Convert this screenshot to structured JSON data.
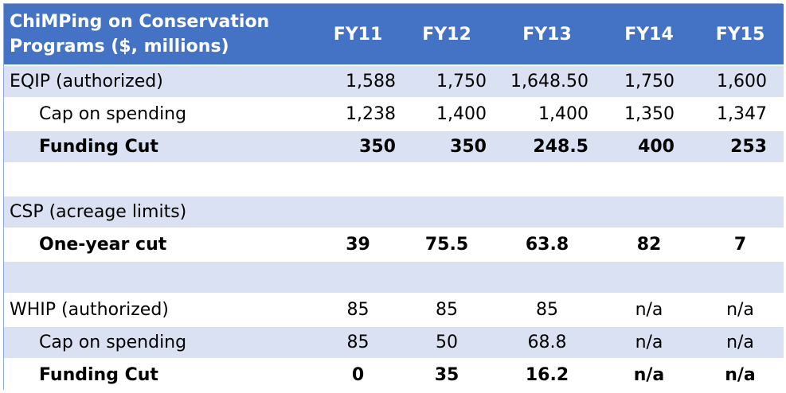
{
  "chart_data": {
    "type": "table",
    "title": "ChiMPing on Conservation Programs ($, millions)",
    "columns": [
      "FY11",
      "FY12",
      "FY13",
      "FY14",
      "FY15"
    ],
    "rows": [
      {
        "label": "EQIP (authorized)",
        "values": [
          "1,588",
          "1,750",
          "1,648.50",
          "1,750",
          "1,600"
        ],
        "bold": false,
        "indent": 0,
        "align": "right",
        "band": true
      },
      {
        "label": "Cap on spending",
        "values": [
          "1,238",
          "1,400",
          "1,400",
          "1,350",
          "1,347"
        ],
        "bold": false,
        "indent": 1,
        "align": "right",
        "band": false
      },
      {
        "label": "Funding Cut",
        "values": [
          "350",
          "350",
          "248.5",
          "400",
          "253"
        ],
        "bold": true,
        "indent": 1,
        "align": "right",
        "band": true
      },
      {
        "label": "",
        "values": [
          "",
          "",
          "",
          "",
          ""
        ],
        "bold": false,
        "indent": 0,
        "align": "right",
        "band": false
      },
      {
        "label": "CSP (acreage limits)",
        "values": [
          "",
          "",
          "",
          "",
          ""
        ],
        "bold": false,
        "indent": 0,
        "align": "right",
        "band": true
      },
      {
        "label": "One-year cut",
        "values": [
          "39",
          "75.5",
          "63.8",
          "82",
          "7"
        ],
        "bold": true,
        "indent": 1,
        "align": "center",
        "band": false
      },
      {
        "label": "",
        "values": [
          "",
          "",
          "",
          "",
          ""
        ],
        "bold": false,
        "indent": 0,
        "align": "right",
        "band": true
      },
      {
        "label": "WHIP (authorized)",
        "values": [
          "85",
          "85",
          "85",
          "n/a",
          "n/a"
        ],
        "bold": false,
        "indent": 0,
        "align": "center",
        "band": false
      },
      {
        "label": "Cap on spending",
        "values": [
          "85",
          "50",
          "68.8",
          "n/a",
          "n/a"
        ],
        "bold": false,
        "indent": 1,
        "align": "center",
        "band": true
      },
      {
        "label": "Funding Cut",
        "values": [
          "0",
          "35",
          "16.2",
          "n/a",
          "n/a"
        ],
        "bold": true,
        "indent": 1,
        "align": "center",
        "band": false
      }
    ],
    "colors": {
      "header_bg": "#4472c4",
      "header_text": "#ffffff",
      "band": "#d9e1f2",
      "plain": "#ffffff",
      "border": "#8ea9db"
    }
  }
}
